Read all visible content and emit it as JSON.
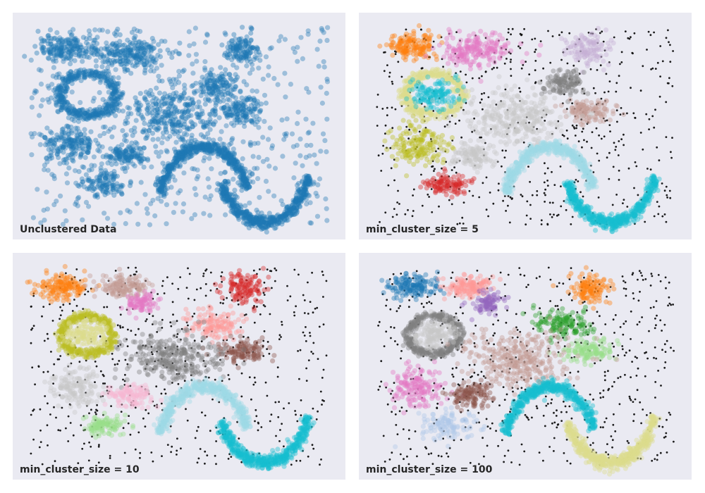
{
  "chart_data": [
    {
      "type": "scatter",
      "title": "Unclustered Data",
      "xlim": [
        0,
        1
      ],
      "ylim": [
        0,
        1
      ],
      "grid": false,
      "noise_count": 520,
      "series": [
        {
          "shape": "blob",
          "color": "#1f77b4",
          "center": [
            0.14,
            0.87
          ],
          "spread": [
            0.045,
            0.03
          ],
          "count": 160
        },
        {
          "shape": "blob",
          "color": "#1f77b4",
          "center": [
            0.34,
            0.85
          ],
          "spread": [
            0.06,
            0.04
          ],
          "count": 220
        },
        {
          "shape": "blob",
          "color": "#1f77b4",
          "center": [
            0.7,
            0.86
          ],
          "spread": [
            0.03,
            0.035
          ],
          "count": 120
        },
        {
          "shape": "ring",
          "color": "#1f77b4",
          "center": [
            0.21,
            0.65
          ],
          "radius": [
            0.09,
            0.1
          ],
          "count": 420
        },
        {
          "shape": "blob",
          "color": "#1f77b4",
          "center": [
            0.62,
            0.7
          ],
          "spread": [
            0.035,
            0.035
          ],
          "count": 120
        },
        {
          "shape": "blob",
          "color": "#1f77b4",
          "center": [
            0.7,
            0.57
          ],
          "spread": [
            0.035,
            0.03
          ],
          "count": 120
        },
        {
          "shape": "blob",
          "color": "#1f77b4",
          "center": [
            0.48,
            0.55
          ],
          "spread": [
            0.08,
            0.07
          ],
          "count": 320
        },
        {
          "shape": "blob",
          "color": "#1f77b4",
          "center": [
            0.16,
            0.42
          ],
          "spread": [
            0.04,
            0.045
          ],
          "count": 160
        },
        {
          "shape": "blob",
          "color": "#1f77b4",
          "center": [
            0.33,
            0.36
          ],
          "spread": [
            0.035,
            0.025
          ],
          "count": 120
        },
        {
          "shape": "blob",
          "color": "#1f77b4",
          "center": [
            0.26,
            0.23
          ],
          "spread": [
            0.035,
            0.03
          ],
          "count": 110
        },
        {
          "shape": "arc",
          "color": "#1f77b4",
          "center": [
            0.58,
            0.1
          ],
          "radius": [
            0.145,
            0.3
          ],
          "angles": [
            20,
            165
          ],
          "thickness": 0.055,
          "count": 520
        },
        {
          "shape": "arc",
          "color": "#1f77b4",
          "center": [
            0.77,
            0.34
          ],
          "radius": [
            0.145,
            0.3
          ],
          "angles": [
            200,
            345
          ],
          "thickness": 0.055,
          "count": 520
        }
      ]
    },
    {
      "type": "scatter",
      "title": "min_cluster_size = 5",
      "xlim": [
        0,
        1
      ],
      "ylim": [
        0,
        1
      ],
      "grid": false,
      "noise_count": 560,
      "series": [
        {
          "shape": "blob",
          "color": "#ff7f0e",
          "center": [
            0.14,
            0.88
          ],
          "spread": [
            0.04,
            0.03
          ],
          "count": 150
        },
        {
          "shape": "blob",
          "color": "#e377c2",
          "center": [
            0.34,
            0.86
          ],
          "spread": [
            0.055,
            0.04
          ],
          "count": 200
        },
        {
          "shape": "blob",
          "color": "#c5b0d5",
          "center": [
            0.7,
            0.87
          ],
          "spread": [
            0.035,
            0.035
          ],
          "count": 120
        },
        {
          "shape": "ring",
          "color": "#dbdb8d",
          "center": [
            0.21,
            0.65
          ],
          "radius": [
            0.09,
            0.1
          ],
          "count": 380
        },
        {
          "shape": "blob",
          "color": "#17becf",
          "center": [
            0.21,
            0.65
          ],
          "spread": [
            0.035,
            0.035
          ],
          "count": 140
        },
        {
          "shape": "blob",
          "color": "#7f7f7f",
          "center": [
            0.62,
            0.7
          ],
          "spread": [
            0.035,
            0.035
          ],
          "count": 120
        },
        {
          "shape": "blob",
          "color": "#c49c94",
          "center": [
            0.7,
            0.57
          ],
          "spread": [
            0.04,
            0.03
          ],
          "count": 120
        },
        {
          "shape": "blob",
          "color": "#c7c7c7",
          "center": [
            0.47,
            0.54
          ],
          "spread": [
            0.08,
            0.07
          ],
          "count": 320
        },
        {
          "shape": "blob",
          "color": "#bcbd22",
          "center": [
            0.16,
            0.41
          ],
          "spread": [
            0.04,
            0.05
          ],
          "count": 170
        },
        {
          "shape": "blob",
          "color": "#c7c7c7",
          "center": [
            0.33,
            0.36
          ],
          "spread": [
            0.035,
            0.03
          ],
          "count": 120
        },
        {
          "shape": "blob",
          "color": "#d62728",
          "center": [
            0.26,
            0.22
          ],
          "spread": [
            0.035,
            0.025
          ],
          "count": 110
        },
        {
          "shape": "arc",
          "color": "#9edae5",
          "center": [
            0.58,
            0.1
          ],
          "radius": [
            0.145,
            0.3
          ],
          "angles": [
            20,
            165
          ],
          "thickness": 0.055,
          "count": 500
        },
        {
          "shape": "arc",
          "color": "#17becf",
          "center": [
            0.77,
            0.34
          ],
          "radius": [
            0.145,
            0.3
          ],
          "angles": [
            200,
            345
          ],
          "thickness": 0.055,
          "count": 500
        }
      ]
    },
    {
      "type": "scatter",
      "title": "min_cluster_size = 10",
      "xlim": [
        0,
        1
      ],
      "ylim": [
        0,
        1
      ],
      "grid": false,
      "noise_count": 580,
      "series": [
        {
          "shape": "blob",
          "color": "#ff7f0e",
          "center": [
            0.13,
            0.88
          ],
          "spread": [
            0.04,
            0.03
          ],
          "count": 150
        },
        {
          "shape": "blob",
          "color": "#c49c94",
          "center": [
            0.32,
            0.88
          ],
          "spread": [
            0.04,
            0.025
          ],
          "count": 140
        },
        {
          "shape": "blob",
          "color": "#e377c2",
          "center": [
            0.38,
            0.8
          ],
          "spread": [
            0.025,
            0.025
          ],
          "count": 90
        },
        {
          "shape": "blob",
          "color": "#d62728",
          "center": [
            0.7,
            0.87
          ],
          "spread": [
            0.03,
            0.035
          ],
          "count": 120
        },
        {
          "shape": "ring",
          "color": "#bcbd22",
          "center": [
            0.21,
            0.65
          ],
          "radius": [
            0.08,
            0.09
          ],
          "count": 360
        },
        {
          "shape": "blob",
          "color": "#dbdb8d",
          "center": [
            0.21,
            0.65
          ],
          "spread": [
            0.035,
            0.03
          ],
          "count": 140
        },
        {
          "shape": "blob",
          "color": "#ff9896",
          "center": [
            0.61,
            0.7
          ],
          "spread": [
            0.04,
            0.035
          ],
          "count": 130
        },
        {
          "shape": "blob",
          "color": "#8c564b",
          "center": [
            0.7,
            0.57
          ],
          "spread": [
            0.04,
            0.03
          ],
          "count": 120
        },
        {
          "shape": "blob",
          "color": "#7f7f7f",
          "center": [
            0.48,
            0.54
          ],
          "spread": [
            0.08,
            0.06
          ],
          "count": 300
        },
        {
          "shape": "blob",
          "color": "#c7c7c7",
          "center": [
            0.17,
            0.4
          ],
          "spread": [
            0.04,
            0.045
          ],
          "count": 150
        },
        {
          "shape": "blob",
          "color": "#f7b6d2",
          "center": [
            0.34,
            0.36
          ],
          "spread": [
            0.035,
            0.03
          ],
          "count": 120
        },
        {
          "shape": "blob",
          "color": "#98df8a",
          "center": [
            0.26,
            0.22
          ],
          "spread": [
            0.035,
            0.025
          ],
          "count": 110
        },
        {
          "shape": "arc",
          "color": "#9edae5",
          "center": [
            0.58,
            0.1
          ],
          "radius": [
            0.145,
            0.3
          ],
          "angles": [
            20,
            165
          ],
          "thickness": 0.055,
          "count": 500
        },
        {
          "shape": "arc",
          "color": "#17becf",
          "center": [
            0.77,
            0.34
          ],
          "radius": [
            0.145,
            0.3
          ],
          "angles": [
            200,
            345
          ],
          "thickness": 0.055,
          "count": 500
        }
      ]
    },
    {
      "type": "scatter",
      "title": "min_cluster_size = 100",
      "xlim": [
        0,
        1
      ],
      "ylim": [
        0,
        1
      ],
      "grid": false,
      "noise_count": 600,
      "series": [
        {
          "shape": "blob",
          "color": "#1f77b4",
          "center": [
            0.14,
            0.88
          ],
          "spread": [
            0.04,
            0.03
          ],
          "count": 150
        },
        {
          "shape": "blob",
          "color": "#ff9896",
          "center": [
            0.32,
            0.88
          ],
          "spread": [
            0.04,
            0.025
          ],
          "count": 140
        },
        {
          "shape": "blob",
          "color": "#9467bd",
          "center": [
            0.38,
            0.8
          ],
          "spread": [
            0.025,
            0.025
          ],
          "count": 90
        },
        {
          "shape": "blob",
          "color": "#ff7f0e",
          "center": [
            0.7,
            0.87
          ],
          "spread": [
            0.035,
            0.035
          ],
          "count": 120
        },
        {
          "shape": "ring",
          "color": "#7f7f7f",
          "center": [
            0.21,
            0.65
          ],
          "radius": [
            0.08,
            0.09
          ],
          "count": 360
        },
        {
          "shape": "blob",
          "color": "#c7c7c7",
          "center": [
            0.21,
            0.65
          ],
          "spread": [
            0.035,
            0.03
          ],
          "count": 140
        },
        {
          "shape": "blob",
          "color": "#2ca02c",
          "center": [
            0.62,
            0.7
          ],
          "spread": [
            0.045,
            0.035
          ],
          "count": 140
        },
        {
          "shape": "blob",
          "color": "#98df8a",
          "center": [
            0.7,
            0.57
          ],
          "spread": [
            0.04,
            0.03
          ],
          "count": 130
        },
        {
          "shape": "blob",
          "color": "#c49c94",
          "center": [
            0.48,
            0.53
          ],
          "spread": [
            0.08,
            0.07
          ],
          "count": 320
        },
        {
          "shape": "blob",
          "color": "#e377c2",
          "center": [
            0.16,
            0.4
          ],
          "spread": [
            0.04,
            0.05
          ],
          "count": 160
        },
        {
          "shape": "blob",
          "color": "#8c564b",
          "center": [
            0.33,
            0.36
          ],
          "spread": [
            0.035,
            0.03
          ],
          "count": 120
        },
        {
          "shape": "blob",
          "color": "#aec7e8",
          "center": [
            0.26,
            0.22
          ],
          "spread": [
            0.045,
            0.035
          ],
          "count": 120
        },
        {
          "shape": "arc",
          "color": "#17becf",
          "center": [
            0.58,
            0.1
          ],
          "radius": [
            0.145,
            0.3
          ],
          "angles": [
            20,
            165
          ],
          "thickness": 0.055,
          "count": 500
        },
        {
          "shape": "arc",
          "color": "#dbdb8d",
          "center": [
            0.77,
            0.34
          ],
          "radius": [
            0.145,
            0.3
          ],
          "angles": [
            200,
            345
          ],
          "thickness": 0.055,
          "count": 500
        }
      ]
    }
  ]
}
